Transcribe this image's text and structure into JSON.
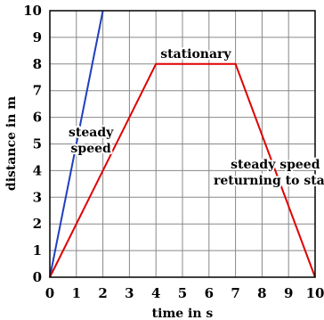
{
  "chart_data": {
    "type": "line",
    "title": "",
    "xlabel": "time in s",
    "ylabel": "distance in m",
    "xlim": [
      0,
      10
    ],
    "ylim": [
      0,
      10
    ],
    "grid": true,
    "x_ticks": [
      "0",
      "1",
      "2",
      "3",
      "4",
      "5",
      "6",
      "7",
      "8",
      "9",
      "10"
    ],
    "y_ticks": [
      "0",
      "1",
      "2",
      "3",
      "4",
      "5",
      "6",
      "7",
      "8",
      "9",
      "10"
    ],
    "series": [
      {
        "color": "#1f3fbf",
        "points": [
          [
            0,
            0
          ],
          [
            2,
            10
          ]
        ]
      },
      {
        "color": "#e00000",
        "points": [
          [
            0,
            0
          ],
          [
            4,
            8
          ],
          [
            7,
            8
          ],
          [
            10,
            0
          ]
        ]
      }
    ],
    "annotations": [
      {
        "lines": [
          "steady",
          "speed"
        ],
        "x": 1.55,
        "y": 5.15
      },
      {
        "lines": [
          "stationary"
        ],
        "x": 5.5,
        "y": 8.4
      },
      {
        "lines": [
          "steady speed",
          "returning to start"
        ],
        "x": 8.5,
        "y": 3.95
      }
    ]
  }
}
